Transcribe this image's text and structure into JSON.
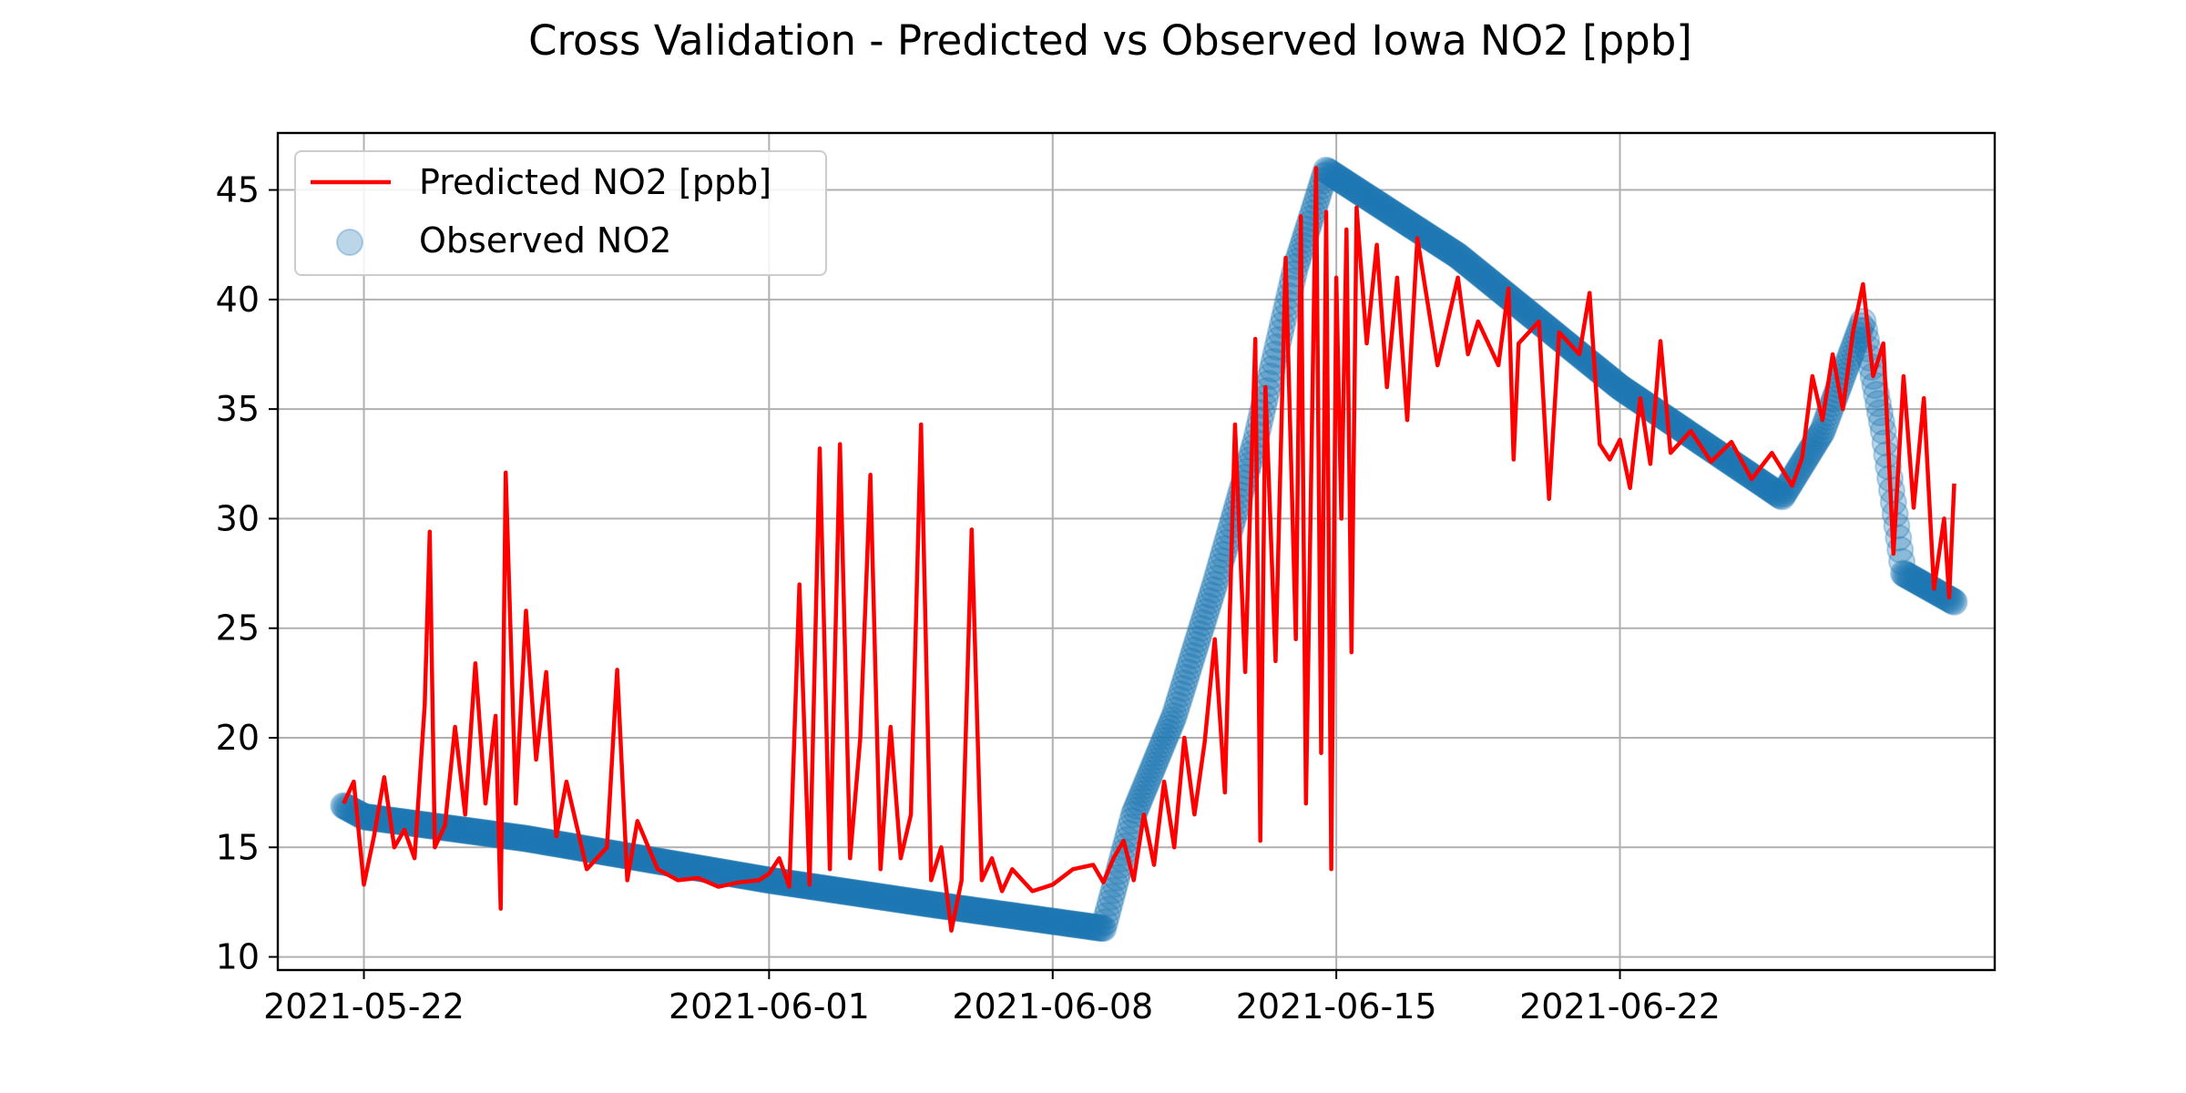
{
  "chart_data": {
    "type": "line",
    "title": "Cross Validation - Predicted vs Observed Iowa NO2 [ppb]",
    "xlabel": "",
    "ylabel": "",
    "x_axis_type": "date",
    "xlim": [
      "2021-05-19T21:00",
      "2021-07-01T06:00"
    ],
    "ylim": [
      9.4,
      47.6
    ],
    "grid": true,
    "legend_position": "upper-left",
    "x_ticks": [
      "2021-05-22",
      "2021-06-01",
      "2021-06-08",
      "2021-06-15",
      "2021-06-22"
    ],
    "y_ticks": [
      10,
      15,
      20,
      25,
      30,
      35,
      40,
      45
    ],
    "colors": {
      "predicted": "#ff0000",
      "observed": "#1f77b4"
    },
    "series": [
      {
        "name": "Observed NO2",
        "kind": "scatter",
        "points": [
          [
            "2021-05-21T12:00",
            16.9
          ],
          [
            "2021-05-22T00:00",
            16.4
          ],
          [
            "2021-05-26T00:00",
            15.4
          ],
          [
            "2021-06-01T00:00",
            13.5
          ],
          [
            "2021-06-05T00:00",
            12.4
          ],
          [
            "2021-06-09T06:00",
            11.3
          ],
          [
            "2021-06-10T00:00",
            16.5
          ],
          [
            "2021-06-11T00:00",
            21.0
          ],
          [
            "2021-06-12T00:00",
            27.0
          ],
          [
            "2021-06-13T00:00",
            33.5
          ],
          [
            "2021-06-14T00:00",
            41.5
          ],
          [
            "2021-06-14T18:00",
            45.9
          ],
          [
            "2021-06-18T00:00",
            42.0
          ],
          [
            "2021-06-22T00:00",
            36.0
          ],
          [
            "2021-06-26T00:00",
            31.0
          ],
          [
            "2021-06-27T00:00",
            34.0
          ],
          [
            "2021-06-28T00:00",
            39.0
          ],
          [
            "2021-06-28T12:00",
            34.0
          ],
          [
            "2021-06-29T00:00",
            27.5
          ],
          [
            "2021-06-30T06:00",
            26.2
          ]
        ]
      },
      {
        "name": "Predicted NO2 [ppb]",
        "kind": "line",
        "points": [
          [
            "2021-05-21T12:00",
            17.0
          ],
          [
            "2021-05-21T18:00",
            18.0
          ],
          [
            "2021-05-22T00:00",
            13.3
          ],
          [
            "2021-05-22T06:00",
            15.5
          ],
          [
            "2021-05-22T12:00",
            18.2
          ],
          [
            "2021-05-22T18:00",
            15.0
          ],
          [
            "2021-05-23T00:00",
            15.8
          ],
          [
            "2021-05-23T06:00",
            14.5
          ],
          [
            "2021-05-23T12:00",
            21.5
          ],
          [
            "2021-05-23T15:00",
            29.4
          ],
          [
            "2021-05-23T18:00",
            15.0
          ],
          [
            "2021-05-24T00:00",
            16.0
          ],
          [
            "2021-05-24T06:00",
            20.5
          ],
          [
            "2021-05-24T12:00",
            16.5
          ],
          [
            "2021-05-24T18:00",
            23.4
          ],
          [
            "2021-05-25T00:00",
            17.0
          ],
          [
            "2021-05-25T06:00",
            21.0
          ],
          [
            "2021-05-25T09:00",
            12.2
          ],
          [
            "2021-05-25T12:00",
            32.1
          ],
          [
            "2021-05-25T18:00",
            17.0
          ],
          [
            "2021-05-26T00:00",
            25.8
          ],
          [
            "2021-05-26T06:00",
            19.0
          ],
          [
            "2021-05-26T12:00",
            23.0
          ],
          [
            "2021-05-26T18:00",
            15.5
          ],
          [
            "2021-05-27T00:00",
            18.0
          ],
          [
            "2021-05-27T12:00",
            14.0
          ],
          [
            "2021-05-28T00:00",
            15.0
          ],
          [
            "2021-05-28T06:00",
            23.1
          ],
          [
            "2021-05-28T12:00",
            13.5
          ],
          [
            "2021-05-28T18:00",
            16.2
          ],
          [
            "2021-05-29T06:00",
            14.0
          ],
          [
            "2021-05-29T18:00",
            13.5
          ],
          [
            "2021-05-30T06:00",
            13.6
          ],
          [
            "2021-05-30T18:00",
            13.2
          ],
          [
            "2021-05-31T06:00",
            13.4
          ],
          [
            "2021-05-31T18:00",
            13.5
          ],
          [
            "2021-06-01T00:00",
            13.8
          ],
          [
            "2021-06-01T06:00",
            14.5
          ],
          [
            "2021-06-01T12:00",
            13.2
          ],
          [
            "2021-06-01T18:00",
            27.0
          ],
          [
            "2021-06-02T00:00",
            13.3
          ],
          [
            "2021-06-02T06:00",
            33.2
          ],
          [
            "2021-06-02T12:00",
            14.0
          ],
          [
            "2021-06-02T18:00",
            33.4
          ],
          [
            "2021-06-03T00:00",
            14.5
          ],
          [
            "2021-06-03T06:00",
            20.0
          ],
          [
            "2021-06-03T12:00",
            32.0
          ],
          [
            "2021-06-03T18:00",
            14.0
          ],
          [
            "2021-06-04T00:00",
            20.5
          ],
          [
            "2021-06-04T06:00",
            14.5
          ],
          [
            "2021-06-04T12:00",
            16.5
          ],
          [
            "2021-06-04T18:00",
            34.3
          ],
          [
            "2021-06-05T00:00",
            13.5
          ],
          [
            "2021-06-05T06:00",
            15.0
          ],
          [
            "2021-06-05T12:00",
            11.2
          ],
          [
            "2021-06-05T18:00",
            13.5
          ],
          [
            "2021-06-06T00:00",
            29.5
          ],
          [
            "2021-06-06T06:00",
            13.5
          ],
          [
            "2021-06-06T12:00",
            14.5
          ],
          [
            "2021-06-06T18:00",
            13.0
          ],
          [
            "2021-06-07T00:00",
            14.0
          ],
          [
            "2021-06-07T12:00",
            13.0
          ],
          [
            "2021-06-08T00:00",
            13.3
          ],
          [
            "2021-06-08T12:00",
            14.0
          ],
          [
            "2021-06-09T00:00",
            14.2
          ],
          [
            "2021-06-09T06:00",
            13.4
          ],
          [
            "2021-06-09T12:00",
            14.5
          ],
          [
            "2021-06-09T18:00",
            15.3
          ],
          [
            "2021-06-10T00:00",
            13.5
          ],
          [
            "2021-06-10T06:00",
            16.5
          ],
          [
            "2021-06-10T12:00",
            14.2
          ],
          [
            "2021-06-10T18:00",
            18.0
          ],
          [
            "2021-06-11T00:00",
            15.0
          ],
          [
            "2021-06-11T06:00",
            20.0
          ],
          [
            "2021-06-11T12:00",
            16.5
          ],
          [
            "2021-06-11T18:00",
            19.8
          ],
          [
            "2021-06-12T00:00",
            24.5
          ],
          [
            "2021-06-12T06:00",
            17.5
          ],
          [
            "2021-06-12T12:00",
            34.3
          ],
          [
            "2021-06-12T18:00",
            23.0
          ],
          [
            "2021-06-13T00:00",
            38.2
          ],
          [
            "2021-06-13T03:00",
            15.3
          ],
          [
            "2021-06-13T06:00",
            36.0
          ],
          [
            "2021-06-13T12:00",
            23.5
          ],
          [
            "2021-06-13T18:00",
            41.9
          ],
          [
            "2021-06-14T00:00",
            24.5
          ],
          [
            "2021-06-14T03:00",
            43.8
          ],
          [
            "2021-06-14T06:00",
            17.0
          ],
          [
            "2021-06-14T12:00",
            46.0
          ],
          [
            "2021-06-14T15:00",
            19.3
          ],
          [
            "2021-06-14T18:00",
            44.0
          ],
          [
            "2021-06-14T21:00",
            14.0
          ],
          [
            "2021-06-15T00:00",
            41.0
          ],
          [
            "2021-06-15T03:00",
            30.0
          ],
          [
            "2021-06-15T06:00",
            43.2
          ],
          [
            "2021-06-15T09:00",
            23.9
          ],
          [
            "2021-06-15T12:00",
            44.2
          ],
          [
            "2021-06-15T18:00",
            38.0
          ],
          [
            "2021-06-16T00:00",
            42.5
          ],
          [
            "2021-06-16T06:00",
            36.0
          ],
          [
            "2021-06-16T12:00",
            41.0
          ],
          [
            "2021-06-16T18:00",
            34.5
          ],
          [
            "2021-06-17T00:00",
            42.8
          ],
          [
            "2021-06-17T12:00",
            37.0
          ],
          [
            "2021-06-18T00:00",
            41.0
          ],
          [
            "2021-06-18T06:00",
            37.5
          ],
          [
            "2021-06-18T12:00",
            39.0
          ],
          [
            "2021-06-19T00:00",
            37.0
          ],
          [
            "2021-06-19T06:00",
            40.5
          ],
          [
            "2021-06-19T09:00",
            32.7
          ],
          [
            "2021-06-19T12:00",
            38.0
          ],
          [
            "2021-06-20T00:00",
            39.0
          ],
          [
            "2021-06-20T06:00",
            30.9
          ],
          [
            "2021-06-20T12:00",
            38.5
          ],
          [
            "2021-06-21T00:00",
            37.5
          ],
          [
            "2021-06-21T06:00",
            40.3
          ],
          [
            "2021-06-21T12:00",
            33.4
          ],
          [
            "2021-06-21T18:00",
            32.7
          ],
          [
            "2021-06-22T00:00",
            33.6
          ],
          [
            "2021-06-22T06:00",
            31.4
          ],
          [
            "2021-06-22T12:00",
            35.5
          ],
          [
            "2021-06-22T18:00",
            32.5
          ],
          [
            "2021-06-23T00:00",
            38.1
          ],
          [
            "2021-06-23T06:00",
            33.0
          ],
          [
            "2021-06-23T18:00",
            34.0
          ],
          [
            "2021-06-24T06:00",
            32.6
          ],
          [
            "2021-06-24T18:00",
            33.5
          ],
          [
            "2021-06-25T06:00",
            31.8
          ],
          [
            "2021-06-25T18:00",
            33.0
          ],
          [
            "2021-06-26T06:00",
            31.5
          ],
          [
            "2021-06-26T12:00",
            32.8
          ],
          [
            "2021-06-26T18:00",
            36.5
          ],
          [
            "2021-06-27T00:00",
            34.5
          ],
          [
            "2021-06-27T06:00",
            37.5
          ],
          [
            "2021-06-27T12:00",
            35.0
          ],
          [
            "2021-06-27T18:00",
            38.5
          ],
          [
            "2021-06-28T00:00",
            40.7
          ],
          [
            "2021-06-28T06:00",
            36.5
          ],
          [
            "2021-06-28T12:00",
            38.0
          ],
          [
            "2021-06-28T18:00",
            28.4
          ],
          [
            "2021-06-29T00:00",
            36.5
          ],
          [
            "2021-06-29T06:00",
            30.5
          ],
          [
            "2021-06-29T12:00",
            35.5
          ],
          [
            "2021-06-29T18:00",
            26.8
          ],
          [
            "2021-06-30T00:00",
            30.0
          ],
          [
            "2021-06-30T03:00",
            26.4
          ],
          [
            "2021-06-30T06:00",
            31.6
          ]
        ]
      }
    ]
  }
}
